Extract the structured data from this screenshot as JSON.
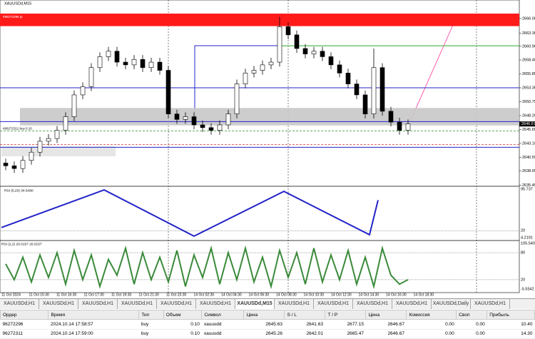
{
  "chart": {
    "type": "candlestick",
    "title": "XAUUSDd,M15",
    "ylim": [
      2635.38,
      2669.39
    ],
    "yticks": [
      {
        "value": 2666.0,
        "label": "2666.00"
      },
      {
        "value": 2663.3,
        "label": "2663.30"
      },
      {
        "value": 2660.9,
        "label": "2660.90"
      },
      {
        "value": 2658.4,
        "label": "2658.40"
      },
      2655.85,
      {
        "value": 2653.3,
        "label": "2653.30"
      },
      2650.75,
      {
        "value": 2648.2,
        "label": "2648.20"
      },
      2645.65,
      {
        "value": 2643.1,
        "label": "2643.10"
      },
      2640.55,
      2638.05,
      2635.45
    ],
    "last_price": 2646.67,
    "candles": [
      [
        2639.5,
        2640.3,
        2638.2,
        2639.0
      ],
      [
        2639.0,
        2639.8,
        2637.7,
        2638.5
      ],
      [
        2638.5,
        2640.8,
        2637.7,
        2640.0
      ],
      [
        2640.0,
        2642.3,
        2639.2,
        2641.5
      ],
      [
        2641.5,
        2644.3,
        2640.7,
        2643.5
      ],
      [
        2643.5,
        2644.8,
        2642.7,
        2644.0
      ],
      [
        2644.0,
        2646.3,
        2643.2,
        2645.5
      ],
      [
        2645.5,
        2648.8,
        2644.7,
        2648.0
      ],
      [
        2648.0,
        2652.8,
        2647.2,
        2652.0
      ],
      [
        2652.0,
        2654.3,
        2651.2,
        2653.5
      ],
      [
        2653.5,
        2657.8,
        2652.7,
        2657.0
      ],
      [
        2657.0,
        2659.8,
        2656.2,
        2659.0
      ],
      [
        2659.0,
        2660.8,
        2658.2,
        2660.0
      ],
      [
        2660.0,
        2660.8,
        2657.2,
        2658.0
      ],
      [
        2658.0,
        2658.8,
        2656.7,
        2657.5
      ],
      [
        2657.5,
        2659.3,
        2656.7,
        2658.5
      ],
      [
        2658.5,
        2659.3,
        2656.2,
        2657.0
      ],
      [
        2657.0,
        2658.8,
        2656.2,
        2658.0
      ],
      [
        2658.0,
        2658.8,
        2655.7,
        2656.5
      ],
      [
        2656.5,
        2657.3,
        2647.7,
        2648.5
      ],
      [
        2648.5,
        2649.3,
        2646.7,
        2647.5
      ],
      [
        2647.5,
        2648.8,
        2646.7,
        2648.0
      ],
      [
        2648.0,
        2648.8,
        2645.7,
        2646.5
      ],
      [
        2646.5,
        2647.3,
        2645.2,
        2646.0
      ],
      [
        2646.0,
        2646.8,
        2644.7,
        2645.5
      ],
      [
        2645.5,
        2647.3,
        2644.7,
        2646.5
      ],
      [
        2646.5,
        2649.3,
        2645.7,
        2648.5
      ],
      [
        2648.5,
        2654.8,
        2647.7,
        2654.0
      ],
      [
        2654.0,
        2656.8,
        2653.2,
        2656.0
      ],
      [
        2656.0,
        2657.3,
        2655.2,
        2656.5
      ],
      [
        2656.5,
        2658.3,
        2655.7,
        2657.5
      ],
      [
        2657.5,
        2658.8,
        2656.7,
        2658.0
      ],
      [
        2658.0,
        2666.3,
        2657.2,
        2664.5
      ],
      [
        2664.5,
        2665.3,
        2662.2,
        2663.0
      ],
      [
        2663.0,
        2663.8,
        2659.7,
        2660.5
      ],
      [
        2660.5,
        2661.3,
        2658.7,
        2659.5
      ],
      [
        2659.5,
        2660.8,
        2658.7,
        2660.0
      ],
      [
        2660.0,
        2660.8,
        2658.2,
        2659.0
      ],
      [
        2659.0,
        2659.8,
        2656.7,
        2657.5
      ],
      [
        2657.5,
        2658.3,
        2655.2,
        2656.0
      ],
      [
        2656.0,
        2656.8,
        2653.2,
        2654.0
      ],
      [
        2654.0,
        2654.8,
        2651.2,
        2652.0
      ],
      [
        2652.0,
        2652.8,
        2647.7,
        2648.5
      ],
      [
        2648.5,
        2660.5,
        2647.7,
        2657.0
      ],
      [
        2657.0,
        2657.8,
        2648.2,
        2649.0
      ],
      [
        2649.0,
        2649.8,
        2646.2,
        2647.0
      ],
      [
        2647.0,
        2647.8,
        2644.7,
        2645.5
      ],
      [
        2645.5,
        2647.5,
        2644.7,
        2646.67
      ]
    ],
    "zones": [
      {
        "from": 2664.6,
        "to": 2666.9,
        "color": "#ff1a1a"
      },
      {
        "from": 2646.4,
        "to": 2649.6,
        "color": "#c8c8c8"
      }
    ],
    "levels": [
      {
        "value": 2661.0,
        "color": "#2eaa2e"
      },
      {
        "value": 2653.3,
        "color": "#2222cc"
      },
      {
        "value": 2647.1,
        "color": "#2222cc"
      },
      {
        "value": 2642.4,
        "color": "#2222cc"
      }
    ],
    "dashed_levels": [
      {
        "value": 2645.4,
        "color": "#2e8b2e"
      },
      {
        "value": 2642.9,
        "color": "#e03030"
      }
    ],
    "zone_label": "#96272296 tp",
    "order_label": "#96272311 buy 0.10"
  },
  "rsi1": {
    "type": "line",
    "title": "RSI (5,20) 34.5480",
    "ylim": [
      4.2191,
      95.737
    ],
    "yticks": [
      95.737,
      20,
      4.2191
    ],
    "series": [
      {
        "color": "#2323c8",
        "x": [
          -0.5,
          11.5,
          22,
          32.5,
          42.5,
          43.5
        ],
        "values": [
          25.5,
          90.7,
          10.5,
          88.2,
          13,
          73
        ]
      }
    ]
  },
  "rsi2": {
    "type": "line",
    "title": "RSI (2,2) 20.0157 20.0157",
    "ylim": [
      -5.5542,
      105.5404
    ],
    "yticks": [
      105.5404,
      80,
      20,
      -5.5542
    ],
    "series": [
      {
        "color": "#3a8a3a",
        "values": [
          55,
          20,
          70,
          15,
          75,
          25,
          80,
          10,
          85,
          20,
          75,
          5,
          65,
          30,
          90,
          10,
          80,
          20,
          70,
          15,
          85,
          5,
          75,
          25,
          90,
          10,
          80,
          20,
          90,
          15,
          70,
          5,
          85,
          25,
          80,
          10,
          90,
          15,
          75,
          20,
          85,
          10,
          70,
          5,
          90,
          30,
          10,
          20
        ]
      }
    ]
  },
  "time_labels": [
    "11 Oct 2024",
    "11 Oct 15:30",
    "11 Oct 16:30",
    "11 Oct 17:30",
    "11 Oct 19:30",
    "11 Oct 21:30",
    "11 Oct 23:30",
    "14 Oct 02:30",
    "14 Oct 04:30",
    "14 Oct 06:30",
    "14 Oct 08:30",
    "14 Oct 10:30",
    "14 Oct 12:30",
    "14 Oct 14:30",
    "14 Oct 16:30",
    "14 Oct 18:30"
  ],
  "tabs": [
    "XAUUSDd,H1",
    "XAUUSDd,H1",
    "XAUUSDd,H1",
    "XAUUSDd,H1",
    "XAUUSDd,H1",
    "XAUUSDd,H1",
    "XAUUSDd,M15",
    "XAUUSDd,H1",
    "XAUUSDd,H1",
    "XAUUSDd,H1",
    "XAUUSDd,H1",
    "XAUUSDd,Daily",
    "XAUUSDd,H1"
  ],
  "active_tab": 6,
  "table": {
    "header": [
      "Ордер",
      "Время",
      "Тип",
      "Объем",
      "Символ",
      "Цена",
      "S / L",
      "Т / Р",
      "Цена",
      "Комиссия",
      "Своп",
      "Прибыль"
    ],
    "rows": [
      [
        "96272296",
        "2024.10.14 17:58:57",
        "buy",
        "0.10",
        "xauusdd",
        "2645.63",
        "2641.63",
        "2677.15",
        "2646.67",
        "0.00",
        "0.00",
        "10.40"
      ],
      [
        "96272311",
        "2024.10.14 17:59:00",
        "buy",
        "0.10",
        "xauusdd",
        "2645.26",
        "2642.01",
        "2665.47",
        "2646.67",
        "0.00",
        "0.00",
        "14.30"
      ]
    ]
  }
}
